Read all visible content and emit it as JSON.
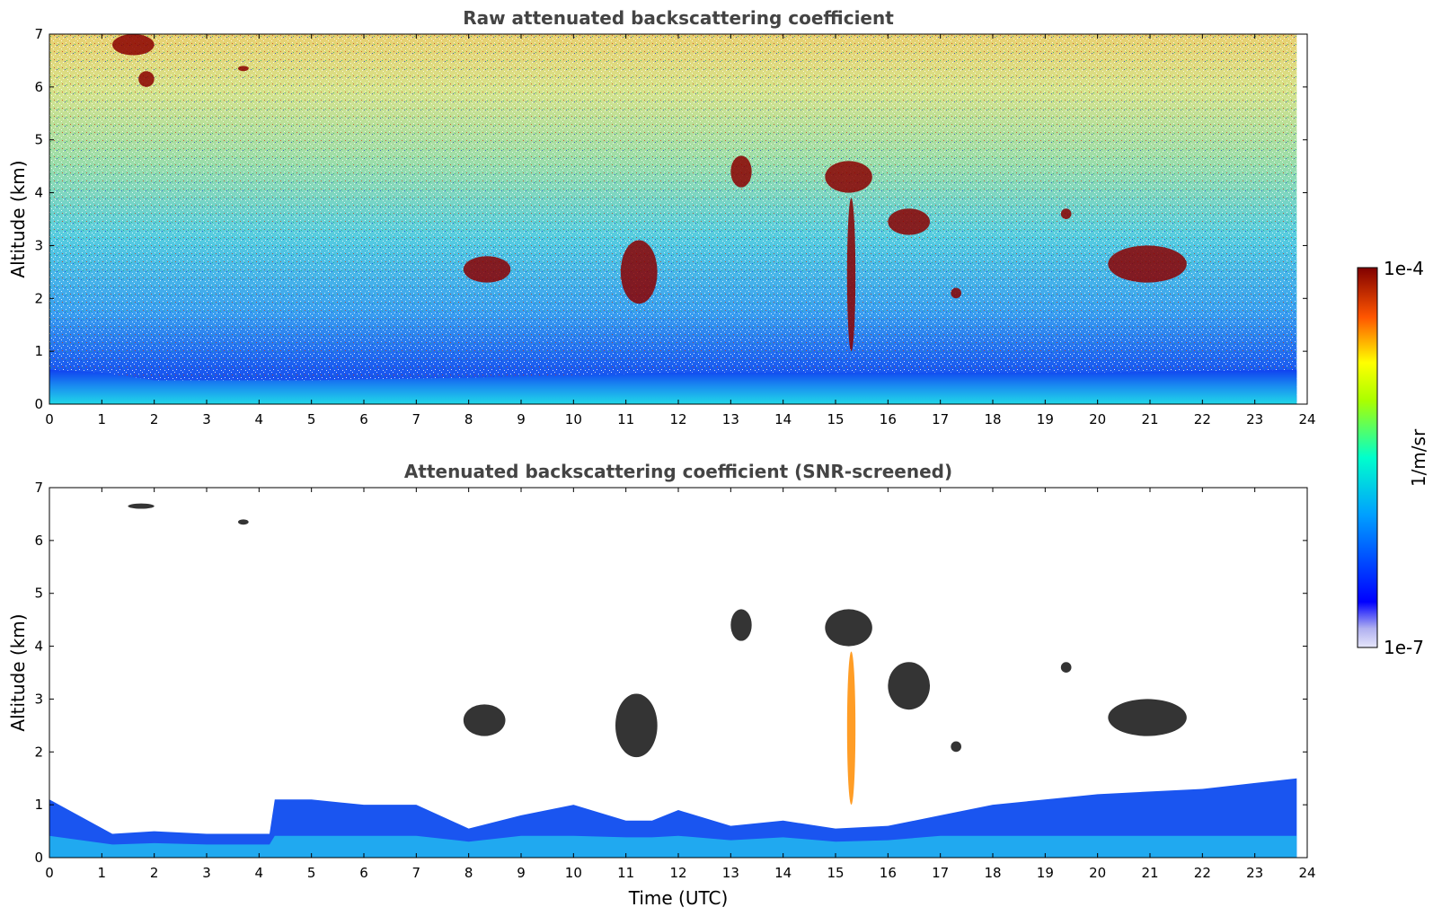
{
  "chart_data": [
    {
      "type": "heatmap",
      "title": "Raw attenuated backscattering coefficient",
      "xlabel": "",
      "ylabel": "Altitude (km)",
      "xlim": [
        0,
        24
      ],
      "ylim": [
        0,
        7
      ],
      "x_ticks": [
        "0",
        "1",
        "2",
        "3",
        "4",
        "5",
        "6",
        "7",
        "8",
        "9",
        "10",
        "11",
        "12",
        "13",
        "14",
        "15",
        "16",
        "17",
        "18",
        "19",
        "20",
        "21",
        "22",
        "23",
        "24"
      ],
      "y_ticks": [
        "0",
        "1",
        "2",
        "3",
        "4",
        "5",
        "6",
        "7"
      ],
      "data_end_hour": 23.8,
      "boundary_layer_top_km": [
        [
          0,
          0.65
        ],
        [
          1,
          0.6
        ],
        [
          2,
          0.45
        ],
        [
          3,
          0.45
        ],
        [
          4,
          0.45
        ],
        [
          5,
          0.45
        ],
        [
          8,
          0.5
        ],
        [
          12,
          0.6
        ],
        [
          16,
          0.6
        ],
        [
          20,
          0.6
        ],
        [
          23.8,
          0.65
        ]
      ],
      "cloud_features": [
        {
          "time": [
            1.2,
            2.0
          ],
          "altitude": [
            6.6,
            7.0
          ]
        },
        {
          "time": [
            1.7,
            2.0
          ],
          "altitude": [
            6.0,
            6.3
          ]
        },
        {
          "time": [
            3.6,
            3.8
          ],
          "altitude": [
            6.3,
            6.4
          ]
        },
        {
          "time": [
            7.9,
            8.8
          ],
          "altitude": [
            2.3,
            2.8
          ]
        },
        {
          "time": [
            10.9,
            11.6
          ],
          "altitude": [
            1.9,
            3.1
          ]
        },
        {
          "time": [
            13.0,
            13.4
          ],
          "altitude": [
            4.1,
            4.7
          ]
        },
        {
          "time": [
            14.8,
            15.7
          ],
          "altitude": [
            4.0,
            4.6
          ]
        },
        {
          "time": [
            15.2,
            15.4
          ],
          "altitude": [
            1.0,
            3.9
          ]
        },
        {
          "time": [
            16.0,
            16.8
          ],
          "altitude": [
            3.2,
            3.7
          ]
        },
        {
          "time": [
            17.2,
            17.4
          ],
          "altitude": [
            2.0,
            2.2
          ]
        },
        {
          "time": [
            19.3,
            19.5
          ],
          "altitude": [
            3.5,
            3.7
          ]
        },
        {
          "time": [
            20.2,
            21.7
          ],
          "altitude": [
            2.3,
            3.0
          ]
        }
      ]
    },
    {
      "type": "heatmap",
      "title": "Attenuated backscattering coefficient (SNR-screened)",
      "xlabel": "Time (UTC)",
      "ylabel": "Altitude (km)",
      "xlim": [
        0,
        24
      ],
      "ylim": [
        0,
        7
      ],
      "x_ticks": [
        "0",
        "1",
        "2",
        "3",
        "4",
        "5",
        "6",
        "7",
        "8",
        "9",
        "10",
        "11",
        "12",
        "13",
        "14",
        "15",
        "16",
        "17",
        "18",
        "19",
        "20",
        "21",
        "22",
        "23",
        "24"
      ],
      "y_ticks": [
        "0",
        "1",
        "2",
        "3",
        "4",
        "5",
        "6",
        "7"
      ],
      "data_end_hour": 23.8,
      "screened_layer_top_km": [
        [
          0,
          1.1
        ],
        [
          1.2,
          0.45
        ],
        [
          2.0,
          0.5
        ],
        [
          3.0,
          0.45
        ],
        [
          4.2,
          0.45
        ],
        [
          4.3,
          1.1
        ],
        [
          5,
          1.1
        ],
        [
          6,
          1.0
        ],
        [
          7,
          1.0
        ],
        [
          8,
          0.55
        ],
        [
          9,
          0.8
        ],
        [
          10,
          1.0
        ],
        [
          11,
          0.7
        ],
        [
          11.5,
          0.7
        ],
        [
          12,
          0.9
        ],
        [
          13,
          0.6
        ],
        [
          14,
          0.7
        ],
        [
          15,
          0.55
        ],
        [
          16,
          0.6
        ],
        [
          17,
          0.8
        ],
        [
          18,
          1.0
        ],
        [
          20,
          1.2
        ],
        [
          22,
          1.3
        ],
        [
          23.8,
          1.5
        ]
      ],
      "cloud_features": [
        {
          "time": [
            1.5,
            2.0
          ],
          "altitude": [
            6.6,
            6.7
          ]
        },
        {
          "time": [
            3.6,
            3.8
          ],
          "altitude": [
            6.3,
            6.4
          ]
        },
        {
          "time": [
            7.9,
            8.7
          ],
          "altitude": [
            2.3,
            2.9
          ]
        },
        {
          "time": [
            10.8,
            11.6
          ],
          "altitude": [
            1.9,
            3.1
          ]
        },
        {
          "time": [
            13.0,
            13.4
          ],
          "altitude": [
            4.1,
            4.7
          ]
        },
        {
          "time": [
            14.8,
            15.7
          ],
          "altitude": [
            4.0,
            4.7
          ]
        },
        {
          "time": [
            15.2,
            15.4
          ],
          "altitude": [
            1.0,
            3.9
          ]
        },
        {
          "time": [
            16.0,
            16.8
          ],
          "altitude": [
            2.8,
            3.7
          ]
        },
        {
          "time": [
            17.2,
            17.4
          ],
          "altitude": [
            2.0,
            2.2
          ]
        },
        {
          "time": [
            19.3,
            19.5
          ],
          "altitude": [
            3.5,
            3.7
          ]
        },
        {
          "time": [
            20.2,
            21.7
          ],
          "altitude": [
            2.3,
            3.0
          ]
        }
      ]
    }
  ],
  "colorbar": {
    "label": "1/m/sr",
    "max_label": "1e-4",
    "min_label": "1e-7",
    "scale": "log",
    "range": [
      1e-07,
      0.0001
    ],
    "colormap": "jet",
    "colors": [
      "#e6e6fa",
      "#0000ff",
      "#00ccff",
      "#00ff88",
      "#ffff00",
      "#ff6600",
      "#800000"
    ]
  }
}
